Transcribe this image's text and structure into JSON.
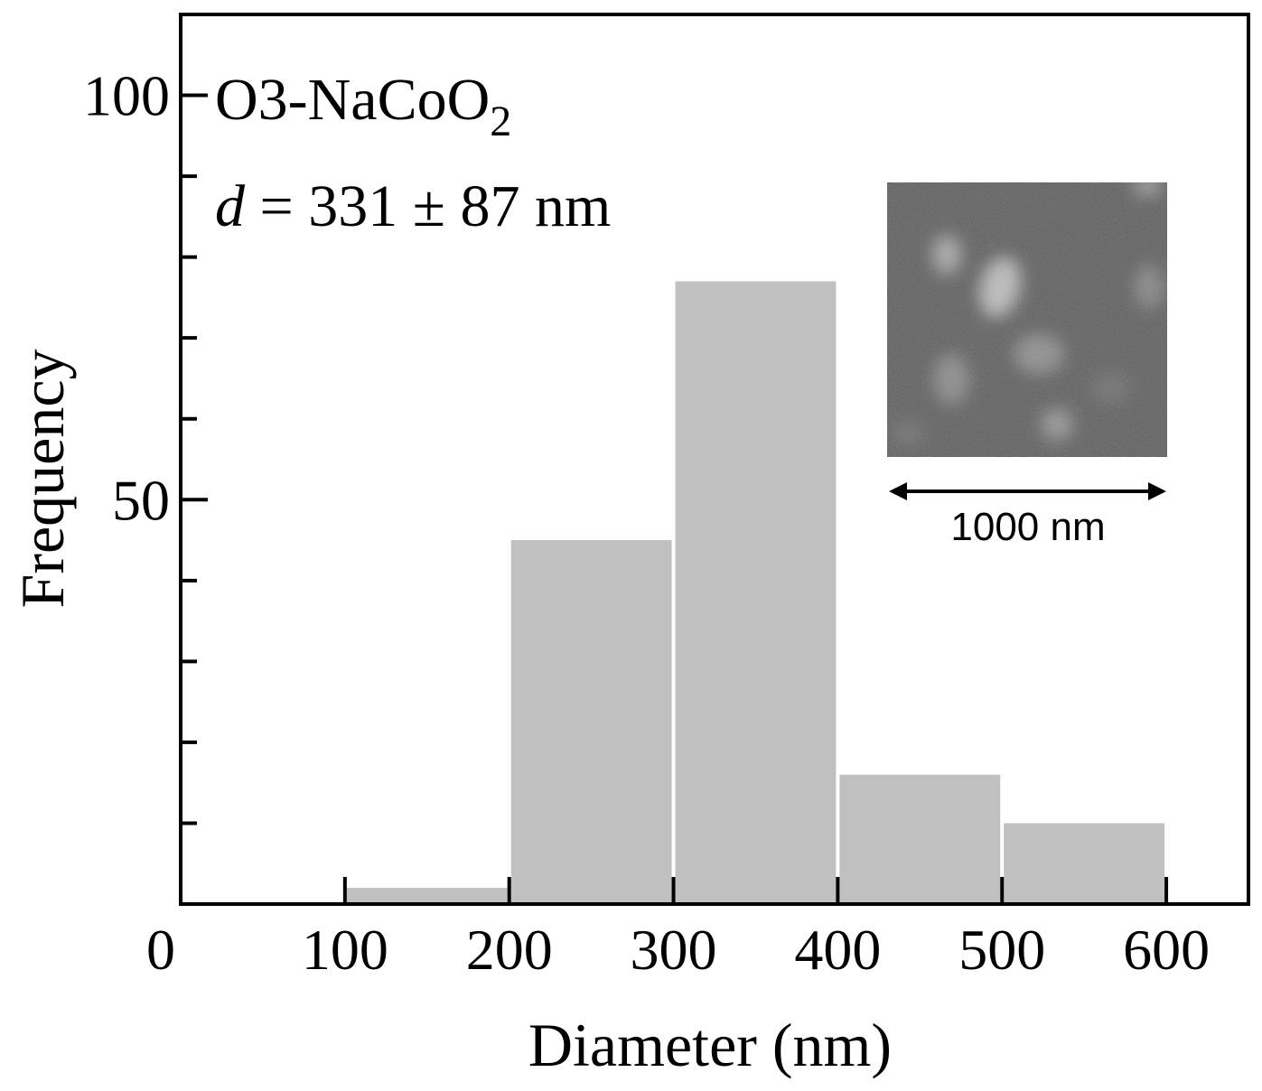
{
  "chart_data": {
    "type": "bar",
    "title": "",
    "xlabel": "Diameter (nm)",
    "ylabel": "Frequency",
    "xlim": [
      0,
      650
    ],
    "ylim": [
      0,
      110
    ],
    "x_ticks": [
      0,
      100,
      200,
      300,
      400,
      500,
      600
    ],
    "x_tick_labels": [
      "0",
      "100",
      "200",
      "300",
      "400",
      "500",
      "600"
    ],
    "y_major_ticks": [
      50,
      100
    ],
    "y_major_tick_labels": [
      "50",
      "100"
    ],
    "y_minor_ticks": [
      10,
      20,
      30,
      40,
      60,
      70,
      80,
      90
    ],
    "bins": [
      {
        "start": 100,
        "end": 200,
        "value": 2
      },
      {
        "start": 200,
        "end": 300,
        "value": 45
      },
      {
        "start": 300,
        "end": 400,
        "value": 77
      },
      {
        "start": 400,
        "end": 500,
        "value": 16
      },
      {
        "start": 500,
        "end": 600,
        "value": 10
      }
    ],
    "bar_color": "#c0c0c0",
    "grid": false,
    "legend": "none",
    "annotations": {
      "sample_label": "O3-NaCoO",
      "sample_subscript": "2",
      "size_symbol": "d",
      "size_text": " = 331 ± 87 nm"
    },
    "inset": {
      "type": "SEM micrograph",
      "scale_bar_label": "1000 nm"
    }
  }
}
